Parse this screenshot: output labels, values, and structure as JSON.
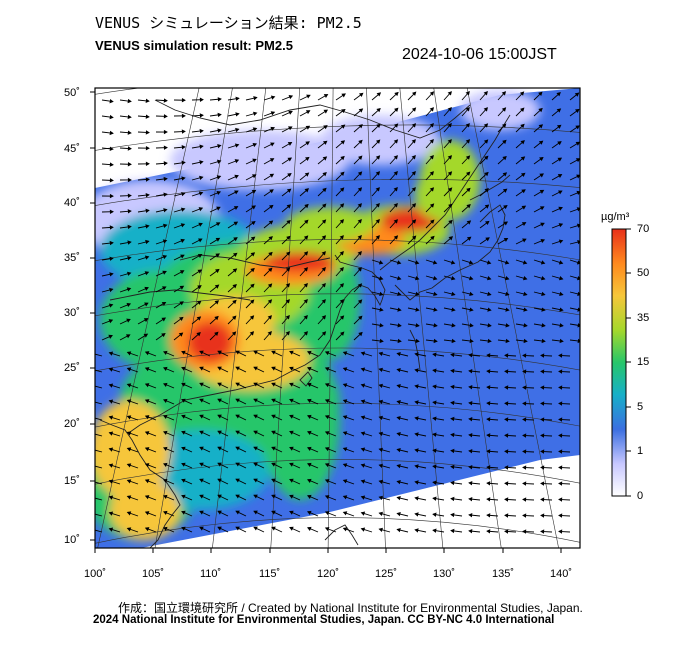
{
  "header": {
    "title_jp": "VENUS シミュレーション結果: PM2.5",
    "title_en": "VENUS simulation result: PM2.5",
    "timestamp": "2024-10-06 15:00JST"
  },
  "map": {
    "lat_labels": [
      "50˚",
      "45˚",
      "40˚",
      "35˚",
      "30˚",
      "25˚",
      "20˚",
      "15˚",
      "10˚"
    ],
    "lon_labels": [
      "100˚",
      "105˚",
      "110˚",
      "115˚",
      "120˚",
      "125˚",
      "130˚",
      "135˚",
      "140˚"
    ],
    "wind_vectors": "shown"
  },
  "colorbar": {
    "unit": "µg/m³",
    "ticks": [
      "70",
      "50",
      "35",
      "15",
      "5",
      "1",
      "0"
    ],
    "colors": [
      "#ffffff",
      "#c8c8ff",
      "#3b6fe0",
      "#17b0c8",
      "#27c66a",
      "#a4d82c",
      "#f6c63a",
      "#ff8a1e",
      "#e8301a"
    ]
  },
  "footer": {
    "credit": "作成：国立環境研究所 / Created by National Institute for Environmental Studies, Japan.",
    "copyright": "2024 National Institute for Environmental Studies, Japan. CC BY-NC 4.0 International"
  }
}
